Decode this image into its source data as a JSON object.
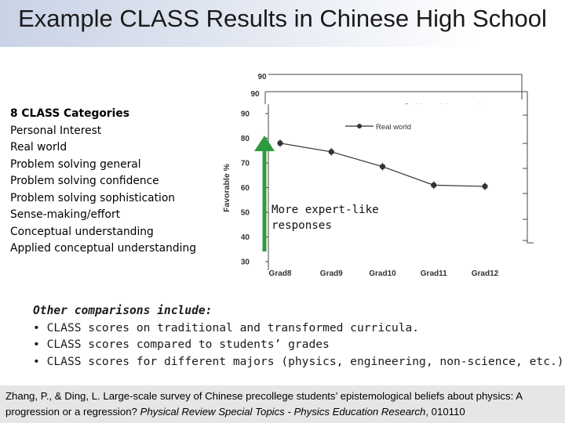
{
  "slide": {
    "title": "Example CLASS Results in Chinese High School"
  },
  "categories": {
    "heading": "8 CLASS Categories",
    "items": [
      "Personal Interest",
      "Real world",
      "Problem solving general",
      "Problem solving confidence",
      "Problem solving sophistication",
      "Sense-making/effort",
      "Conceptual understanding",
      "Applied conceptual understanding"
    ]
  },
  "annotation": {
    "text_line1": "More expert-like",
    "text_line2": "responses",
    "arrow_color": "#2e9a3e"
  },
  "chart_data": {
    "type": "line",
    "title": "",
    "xlabel": "",
    "ylabel": "Favorable %",
    "categories": [
      "Grad8",
      "Grad9",
      "Grad10",
      "Grad11",
      "Grad12"
    ],
    "ylim": [
      30,
      90
    ],
    "yticks": [
      30,
      40,
      50,
      60,
      70,
      80,
      90
    ],
    "series": [
      {
        "name": "Real world",
        "values": [
          78,
          74.5,
          68.5,
          61,
          60.5
        ]
      }
    ],
    "background_stack": {
      "tick_labels": [
        "90",
        "90"
      ],
      "legend_fragment": "Problem solving general"
    },
    "legend": "top-right",
    "grid": false,
    "marker_color": "#333333"
  },
  "comparisons": {
    "heading": "Other comparisons include:",
    "bullet": "•",
    "items": [
      "CLASS scores on traditional and transformed curricula.",
      "CLASS scores compared to students’ grades",
      "CLASS scores for different majors (physics, engineering, non-science, etc.)"
    ]
  },
  "citation": {
    "authors": "Zhang, P., & Ding, L. Large-scale survey of Chinese precollege students’ epistemological beliefs about physics: A progression or a regression?",
    "journal": "Physical Review Special Topics - Physics Education Research",
    "article": ", 010110"
  }
}
